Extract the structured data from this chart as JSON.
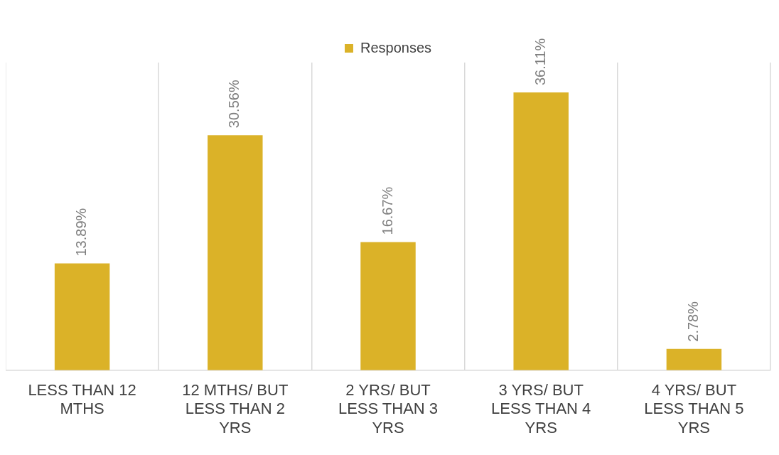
{
  "chart_data": {
    "type": "bar",
    "categories": [
      "LESS THAN 12 MTHS",
      "12 MTHS/ BUT LESS THAN 2 YRS",
      "2 YRS/ BUT LESS THAN 3 YRS",
      "3 YRS/ BUT LESS THAN 4 YRS",
      "4 YRS/ BUT LESS THAN 5 YRS"
    ],
    "series": [
      {
        "name": "Responses",
        "color": "#dbb228",
        "values": [
          13.89,
          30.56,
          16.67,
          36.11,
          2.78
        ],
        "value_labels": [
          "13.89%",
          "30.56%",
          "16.67%",
          "36.11%",
          "2.78%"
        ]
      }
    ],
    "legend": "top",
    "grid": "x",
    "tick_labels": "x"
  }
}
